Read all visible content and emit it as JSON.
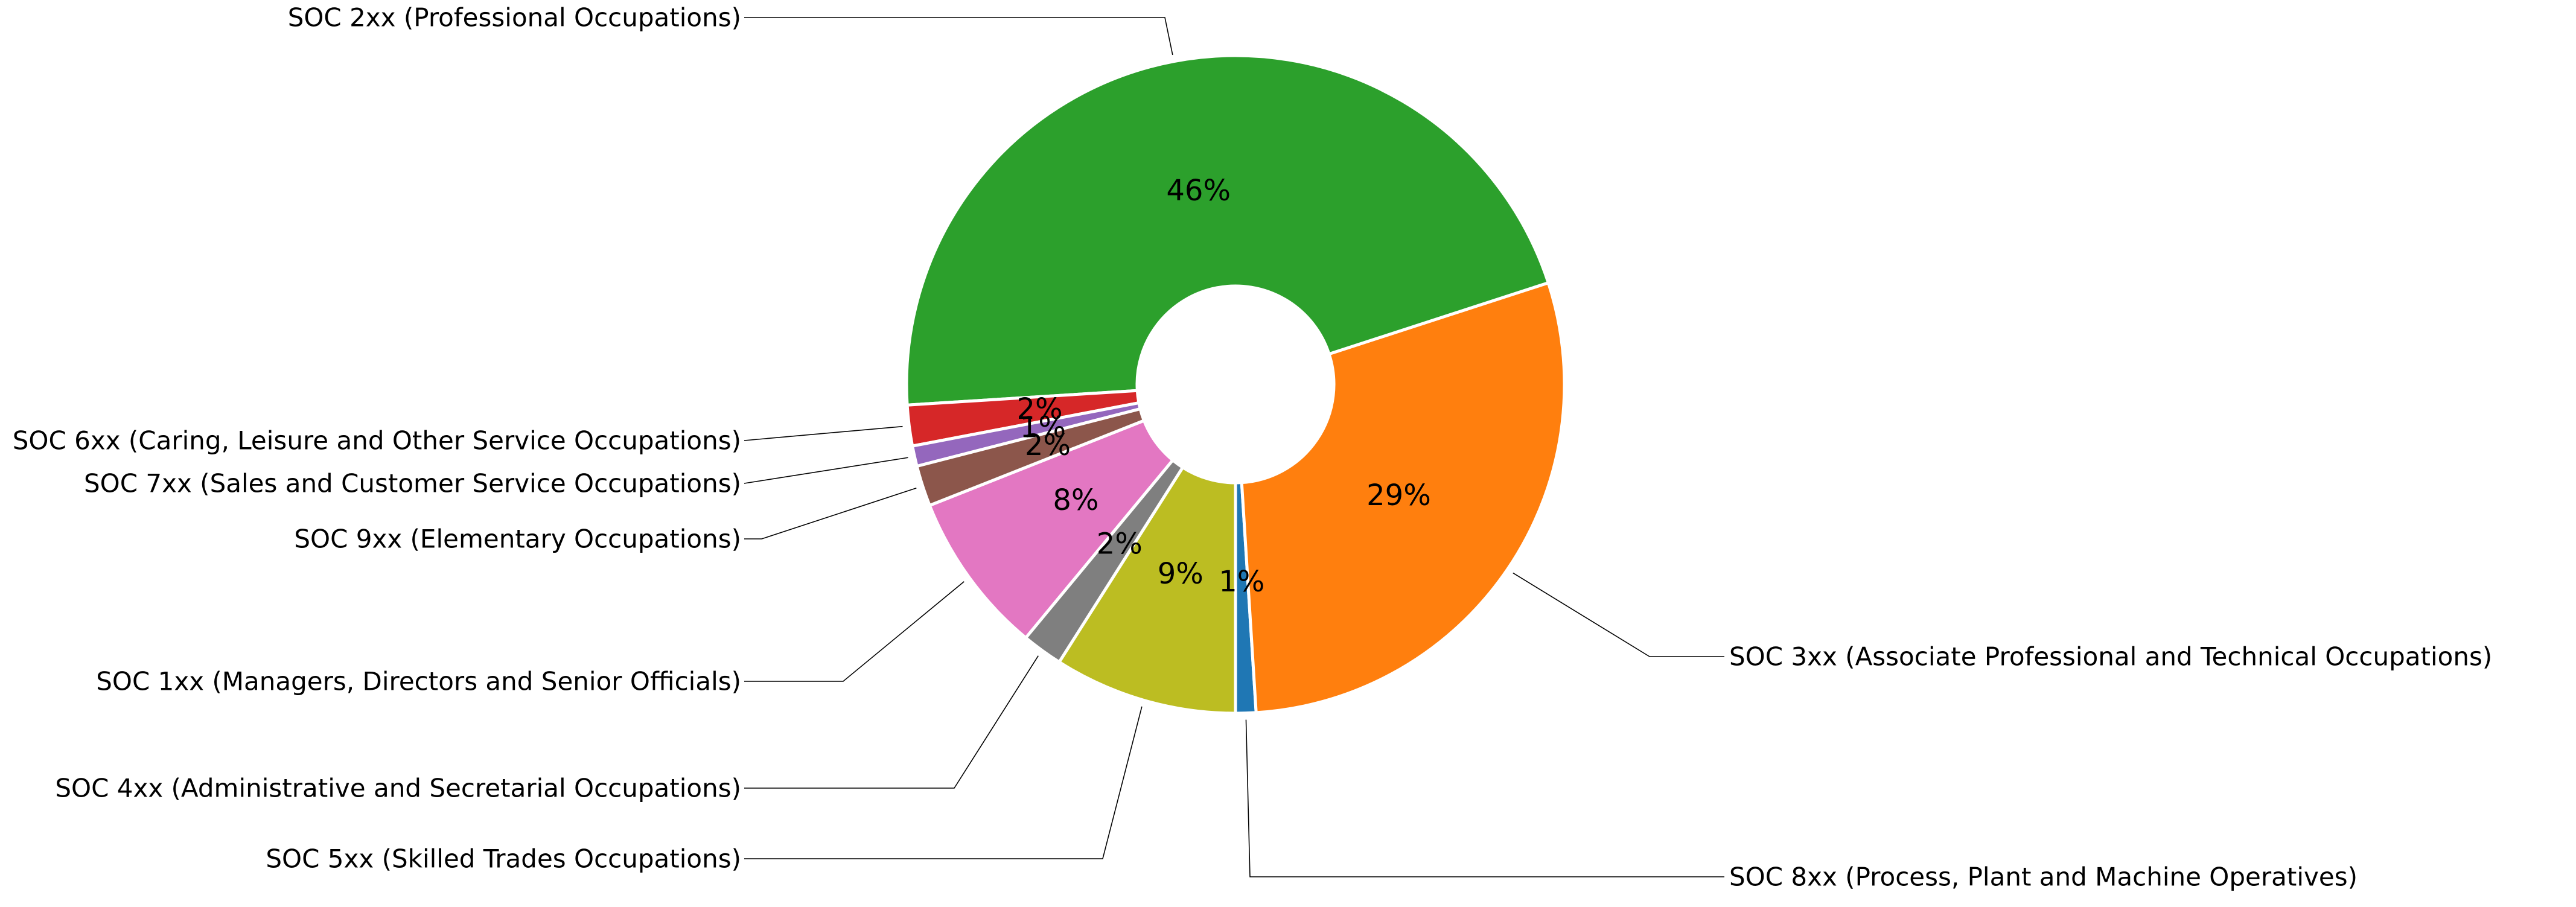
{
  "chart_data": {
    "type": "pie",
    "donut": true,
    "title": "",
    "start_angle_deg": 270,
    "direction": "counterclockwise",
    "slices": [
      {
        "label": "SOC 8xx (Process, Plant and Machine Operatives)",
        "value": 1,
        "pct_label": "1%",
        "color": "#1f77b4"
      },
      {
        "label": "SOC 3xx (Associate Professional and Technical Occupations)",
        "value": 29,
        "pct_label": "29%",
        "color": "#ff7f0e"
      },
      {
        "label": "SOC 2xx (Professional Occupations)",
        "value": 46,
        "pct_label": "46%",
        "color": "#2ca02c"
      },
      {
        "label": "SOC 6xx (Caring, Leisure and Other Service Occupations)",
        "value": 2,
        "pct_label": "2%",
        "color": "#d62728"
      },
      {
        "label": "SOC 7xx (Sales and Customer Service Occupations)",
        "value": 1,
        "pct_label": "1%",
        "color": "#9467bd"
      },
      {
        "label": "SOC 9xx (Elementary Occupations)",
        "value": 2,
        "pct_label": "2%",
        "color": "#8c564b"
      },
      {
        "label": "SOC 1xx (Managers, Directors and Senior Officials)",
        "value": 8,
        "pct_label": "8%",
        "color": "#e377c2"
      },
      {
        "label": "SOC 4xx (Administrative and Secretarial Occupations)",
        "value": 2,
        "pct_label": "2%",
        "color": "#7f7f7f"
      },
      {
        "label": "SOC 5xx (Skilled Trades Occupations)",
        "value": 9,
        "pct_label": "9%",
        "color": "#bcbd22"
      }
    ]
  }
}
